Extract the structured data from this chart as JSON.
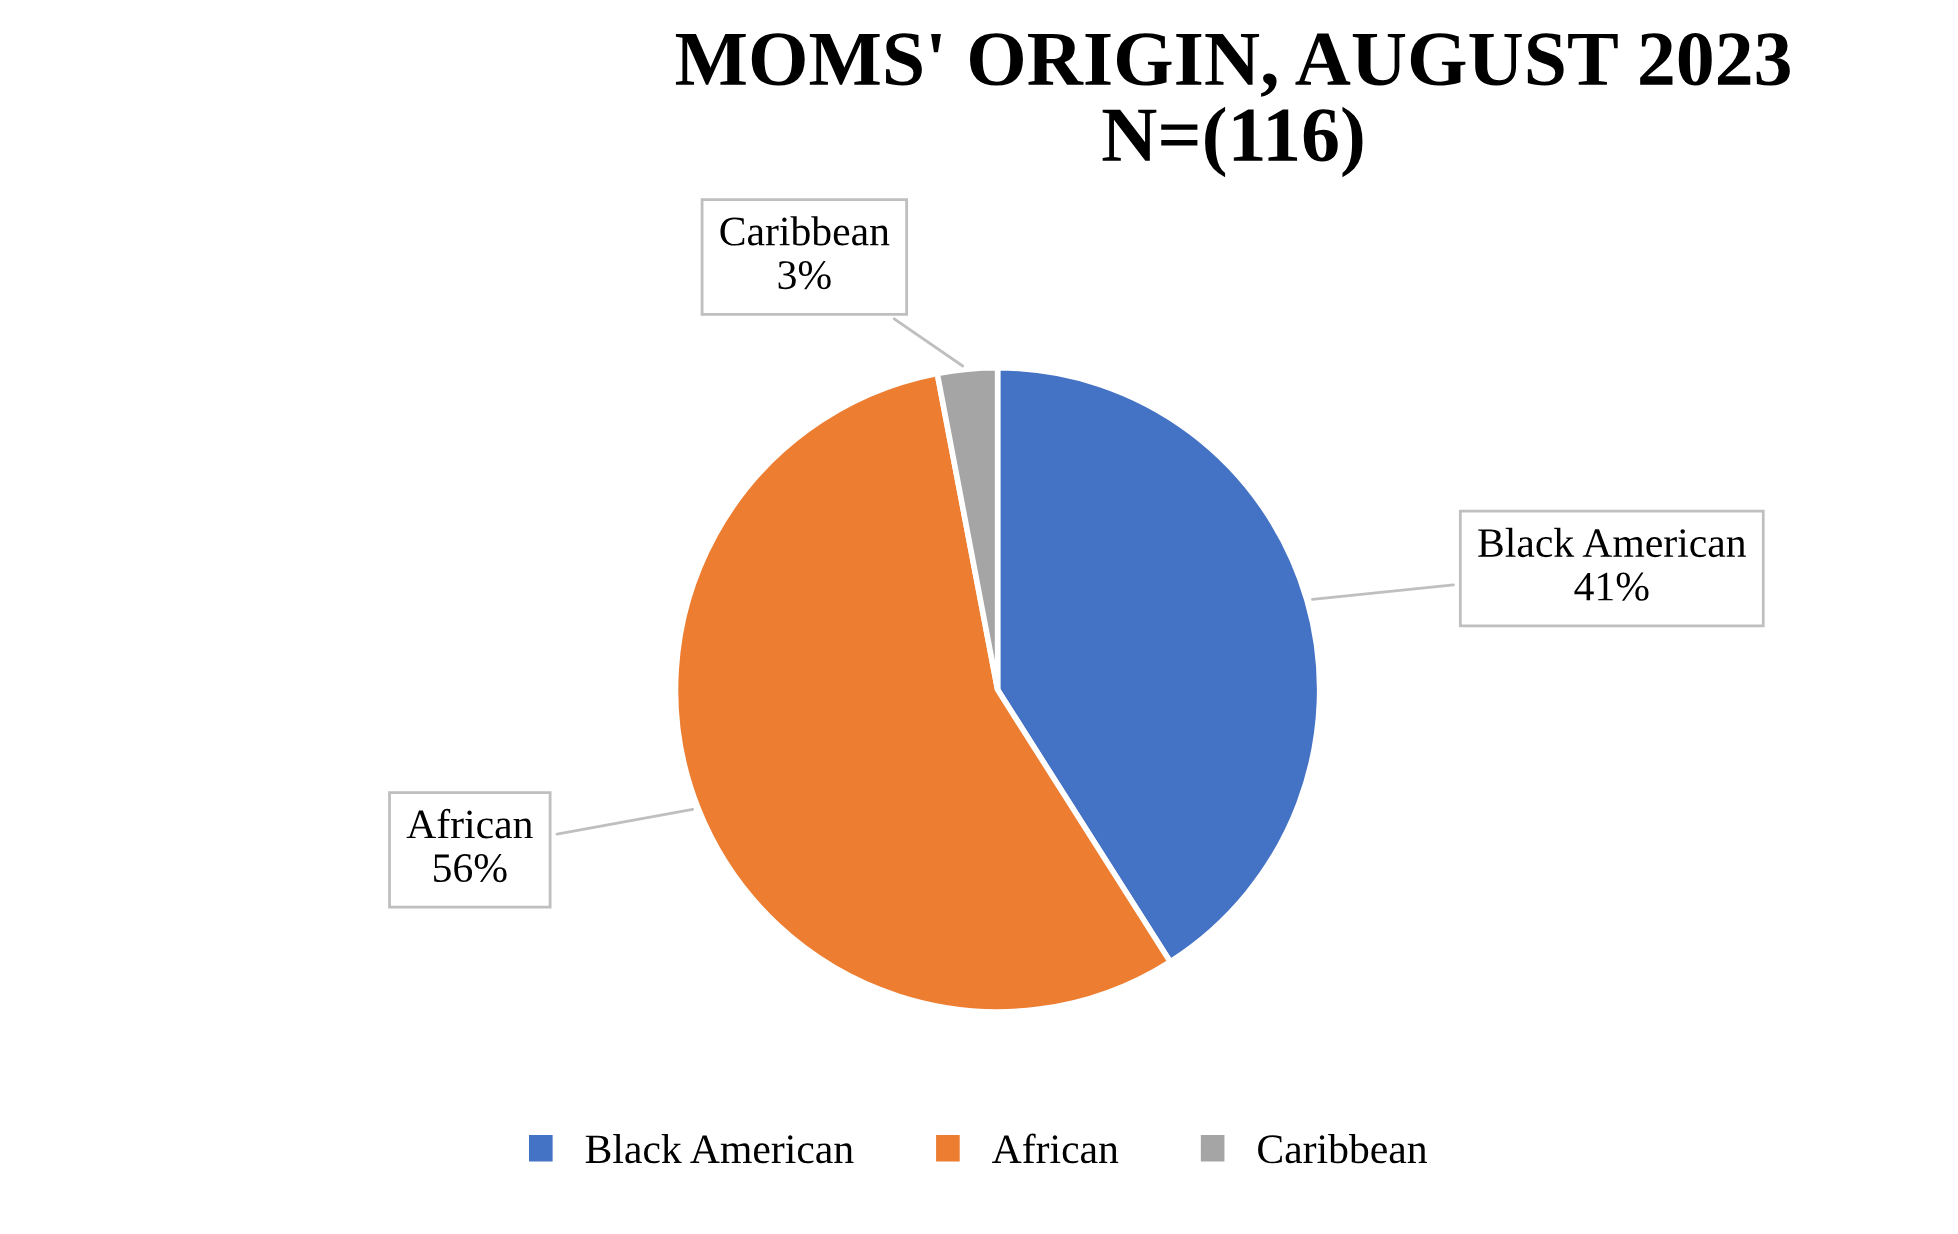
{
  "chart_data": {
    "type": "pie",
    "title": "MOMS' ORIGIN, AUGUST 2023\nN=(116)",
    "categories": [
      "Black American",
      "African",
      "Caribbean"
    ],
    "values": [
      41,
      56,
      3
    ],
    "colors": [
      "#4472c4",
      "#ed7d31",
      "#a5a5a5"
    ],
    "value_labels": [
      "41%",
      "56%",
      "3%"
    ],
    "legend": "bottom"
  }
}
